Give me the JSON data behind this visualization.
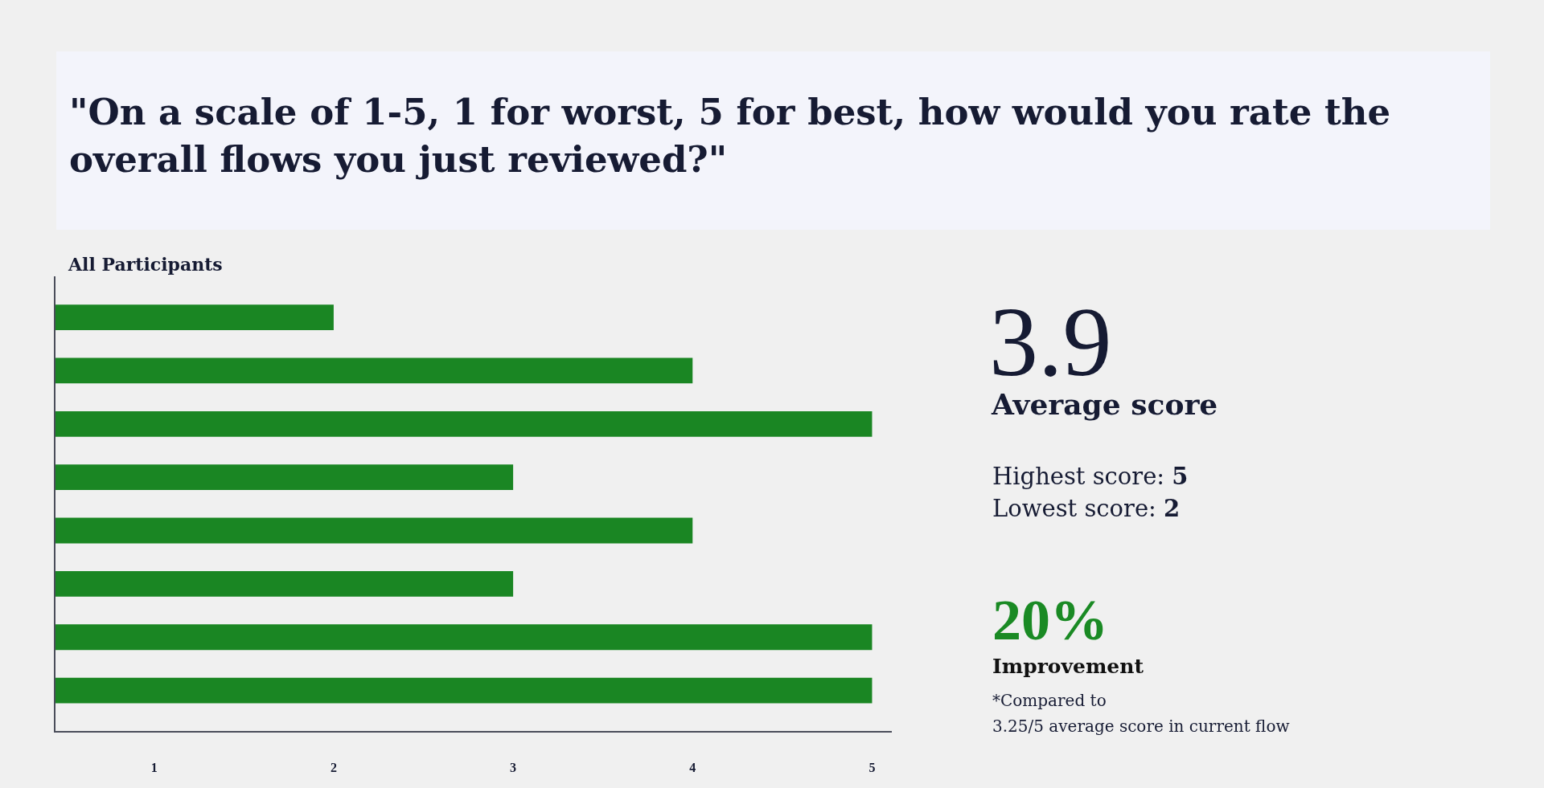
{
  "chart_data": {
    "type": "bar",
    "orientation": "horizontal",
    "title": "\"On a scale of 1-5, 1 for worst, 5 for best, how would you rate the overall flows you just reviewed?\"",
    "subtitle": "All Participants",
    "categories": [
      null,
      null,
      null,
      null,
      null,
      null,
      null,
      null
    ],
    "values": [
      2,
      4,
      5,
      3,
      4,
      3,
      5,
      5
    ],
    "color": "#1a8623",
    "xlim": [
      0.45,
      5.11
    ],
    "xticks": [
      1,
      2,
      3,
      4,
      5
    ],
    "tick_labels": "x",
    "annotations": [
      "3.9",
      "Average score",
      "Highest score: 5",
      "Lowest score: 2",
      "20%",
      "Improvement",
      "*Compared to",
      "3.25/5 average score in current flow"
    ]
  }
}
